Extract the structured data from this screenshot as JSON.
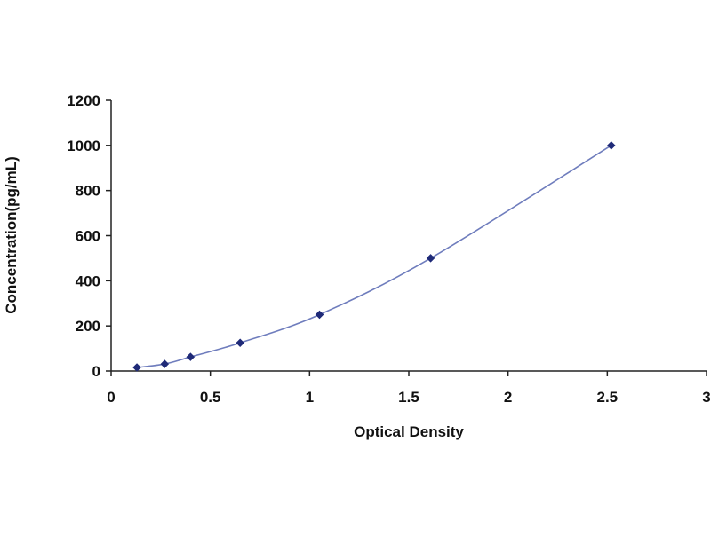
{
  "chart_data": {
    "type": "scatter",
    "title": "",
    "xlabel": "Optical Density",
    "ylabel": "Concentration(pg/mL)",
    "xlim": [
      0,
      3
    ],
    "ylim": [
      0,
      1200
    ],
    "x_ticks": [
      0,
      0.5,
      1,
      1.5,
      2,
      2.5,
      3
    ],
    "x_tick_labels": [
      "0",
      "0.5",
      "1",
      "1.5",
      "2",
      "2.5",
      "3"
    ],
    "y_ticks": [
      0,
      200,
      400,
      600,
      800,
      1000,
      1200
    ],
    "y_tick_labels": [
      "0",
      "200",
      "400",
      "600",
      "800",
      "1000",
      "1200"
    ],
    "grid": false,
    "legend": "none",
    "series": [
      {
        "x": [
          0.13,
          0.27,
          0.4,
          0.65,
          1.05,
          1.61,
          2.52
        ],
        "y": [
          15.6,
          31.2,
          62.5,
          125,
          250,
          500,
          1000
        ],
        "fit": "smooth curve"
      }
    ],
    "colors": {
      "point": "#1f2a78",
      "curve": "#6f7dbd",
      "axis": "#222222"
    }
  }
}
